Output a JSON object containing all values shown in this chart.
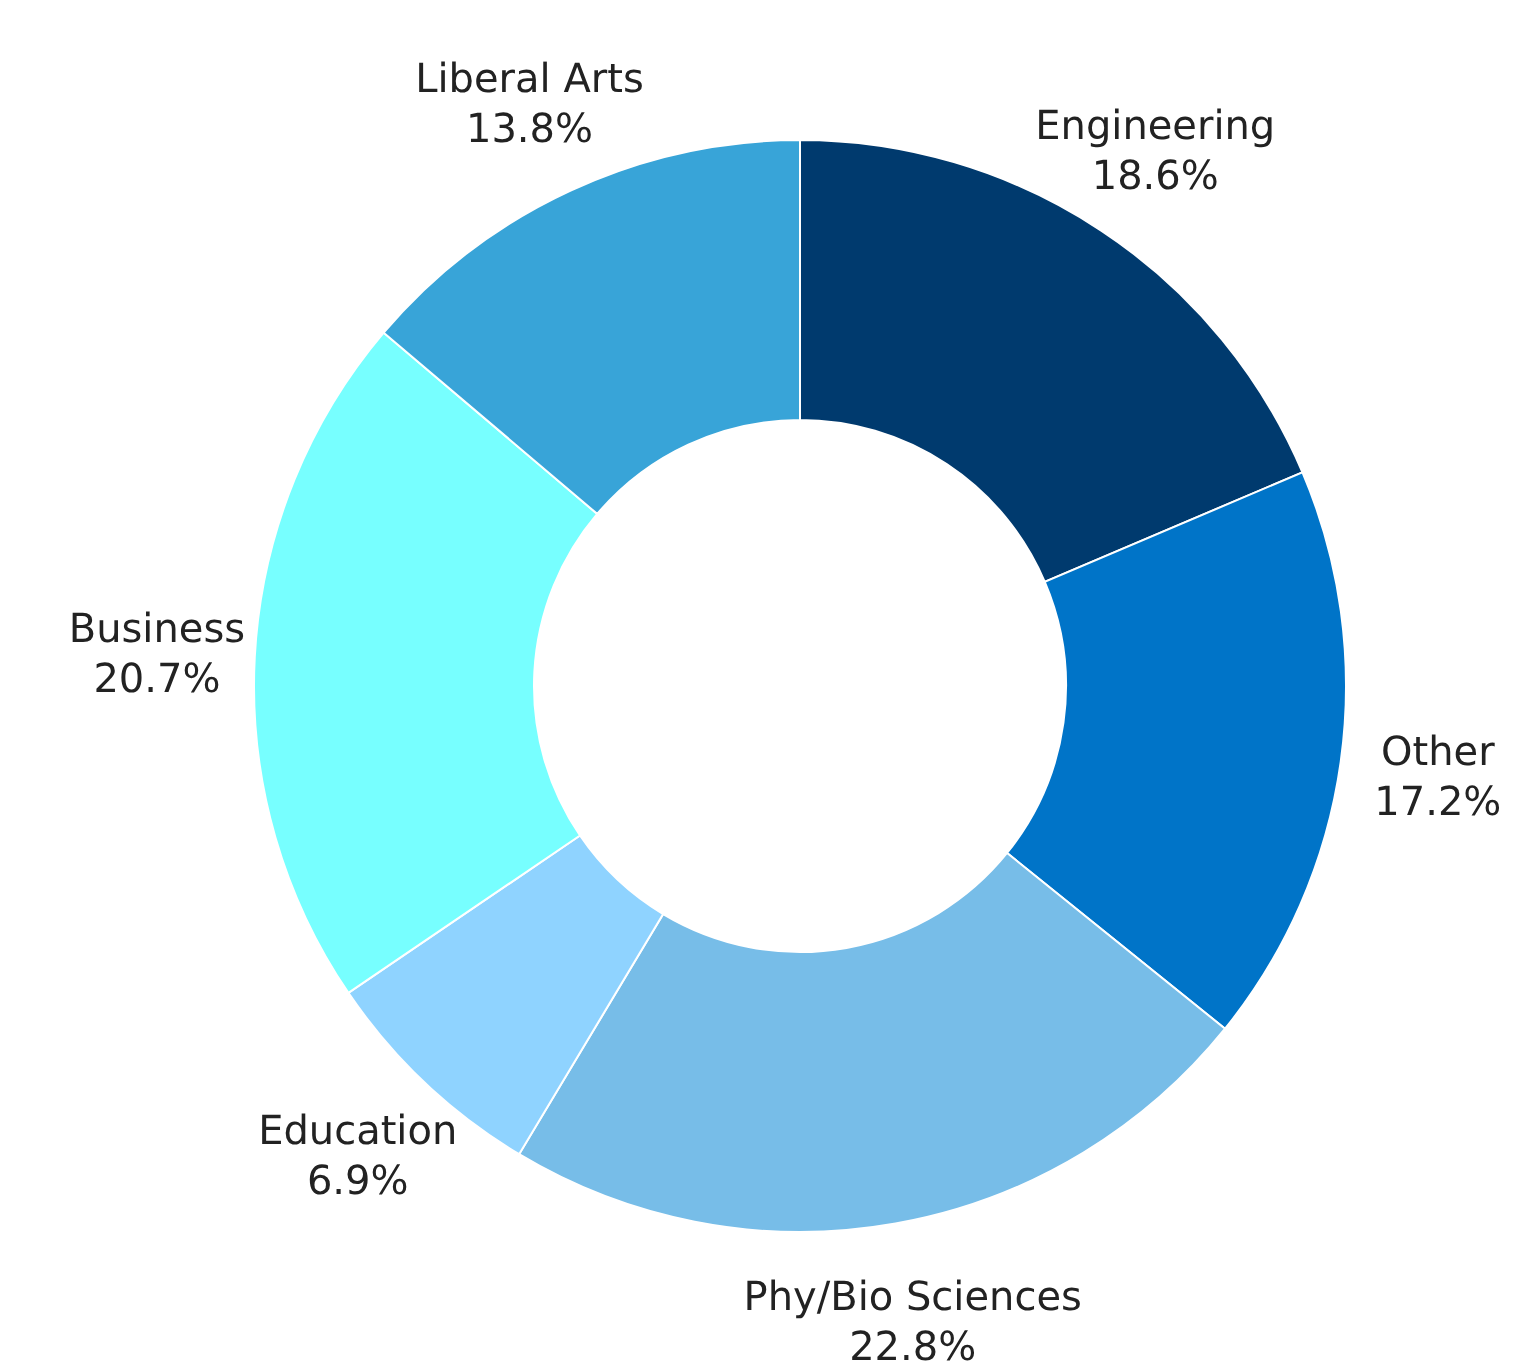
{
  "chart_data": {
    "type": "donut",
    "categories": [
      "Engineering",
      "Other",
      "Phy/Bio Sciences",
      "Education",
      "Business",
      "Liberal Arts"
    ],
    "values": [
      18.6,
      17.2,
      22.8,
      6.9,
      20.7,
      13.8
    ],
    "colors": [
      "#003a6e",
      "#0074c8",
      "#77bde8",
      "#8fd3ff",
      "#77ffff",
      "#38a4d8"
    ],
    "value_labels": [
      "18.6%",
      "17.2%",
      "22.8%",
      "6.9%",
      "20.7%",
      "13.8%"
    ]
  }
}
